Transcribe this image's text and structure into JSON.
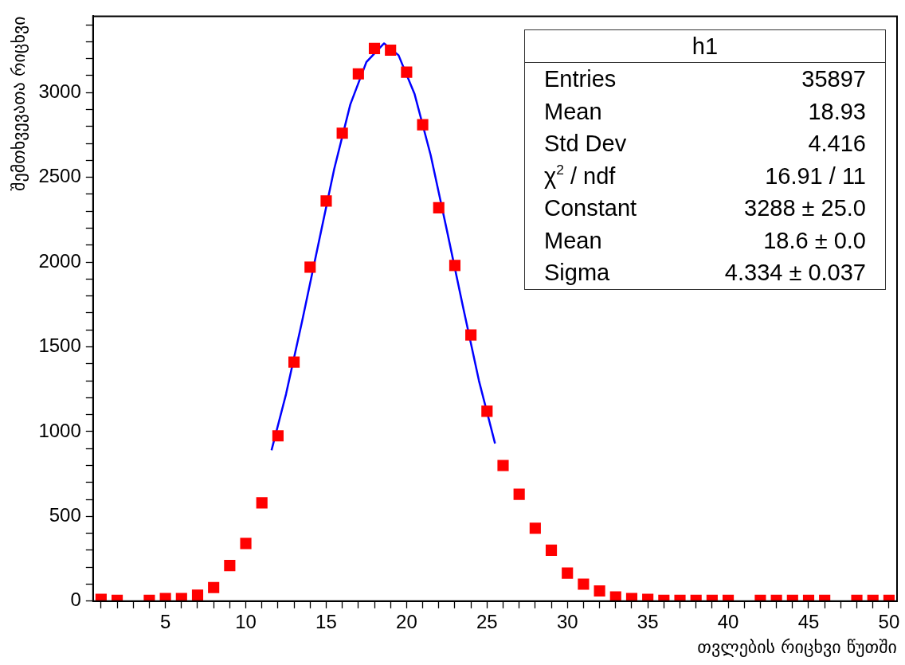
{
  "chart_data": {
    "type": "scatter",
    "xlabel": "თვლების რიცხვი წუთში",
    "ylabel": "შემთხვევათა რიცხვი",
    "x": [
      1,
      2,
      3,
      4,
      5,
      6,
      7,
      8,
      9,
      10,
      11,
      12,
      13,
      14,
      15,
      16,
      17,
      18,
      19,
      20,
      21,
      22,
      23,
      24,
      25,
      26,
      27,
      28,
      29,
      30,
      31,
      32,
      33,
      34,
      35,
      36,
      37,
      38,
      39,
      40,
      41,
      42,
      43,
      44,
      45,
      46,
      47,
      48,
      49,
      50
    ],
    "series": [
      {
        "type": "scatter",
        "color": "#ff0000",
        "marker": "square",
        "values": [
          10,
          5,
          null,
          5,
          15,
          15,
          35,
          80,
          210,
          340,
          580,
          975,
          1410,
          1970,
          2360,
          2760,
          3110,
          3260,
          3250,
          3120,
          2810,
          2320,
          1980,
          1570,
          1120,
          800,
          630,
          430,
          300,
          165,
          100,
          60,
          25,
          15,
          10,
          5,
          5,
          5,
          5,
          5,
          null,
          5,
          5,
          5,
          5,
          5,
          null,
          5,
          5,
          5
        ]
      },
      {
        "type": "line",
        "color": "#0000ff",
        "marker": "none",
        "line_style": "solid",
        "x": [
          11.6,
          12.5,
          13.5,
          14.5,
          15.5,
          16.5,
          17.5,
          18.6,
          19.5,
          20.5,
          21.5,
          22.5,
          23.5,
          24.5,
          25.5
        ],
        "values": [
          890,
          1220,
          1650,
          2100,
          2550,
          2930,
          3180,
          3290,
          3220,
          2990,
          2630,
          2190,
          1740,
          1300,
          930
        ]
      }
    ],
    "xlim": [
      0.5,
      50.5
    ],
    "xticks": [
      {
        "value": 1,
        "label": null
      },
      {
        "value": 2,
        "label": null
      },
      {
        "value": 3,
        "label": null
      },
      {
        "value": 4,
        "label": null
      },
      5,
      {
        "value": 6,
        "label": null
      },
      {
        "value": 7,
        "label": null
      },
      {
        "value": 8,
        "label": null
      },
      {
        "value": 9,
        "label": null
      },
      10,
      {
        "value": 11,
        "label": null
      },
      {
        "value": 12,
        "label": null
      },
      {
        "value": 13,
        "label": null
      },
      {
        "value": 14,
        "label": null
      },
      15,
      {
        "value": 16,
        "label": null
      },
      {
        "value": 17,
        "label": null
      },
      {
        "value": 18,
        "label": null
      },
      {
        "value": 19,
        "label": null
      },
      20,
      {
        "value": 21,
        "label": null
      },
      {
        "value": 22,
        "label": null
      },
      {
        "value": 23,
        "label": null
      },
      {
        "value": 24,
        "label": null
      },
      25,
      {
        "value": 26,
        "label": null
      },
      {
        "value": 27,
        "label": null
      },
      {
        "value": 28,
        "label": null
      },
      {
        "value": 29,
        "label": null
      },
      30,
      {
        "value": 31,
        "label": null
      },
      {
        "value": 32,
        "label": null
      },
      {
        "value": 33,
        "label": null
      },
      {
        "value": 34,
        "label": null
      },
      35,
      {
        "value": 36,
        "label": null
      },
      {
        "value": 37,
        "label": null
      },
      {
        "value": 38,
        "label": null
      },
      {
        "value": 39,
        "label": null
      },
      40,
      {
        "value": 41,
        "label": null
      },
      {
        "value": 42,
        "label": null
      },
      {
        "value": 43,
        "label": null
      },
      {
        "value": 44,
        "label": null
      },
      45,
      {
        "value": 46,
        "label": null
      },
      {
        "value": 47,
        "label": null
      },
      {
        "value": 48,
        "label": null
      },
      {
        "value": 49,
        "label": null
      },
      50
    ],
    "ylim": [
      0,
      3450
    ],
    "yticks": [
      0,
      {
        "value": 100,
        "label": null
      },
      {
        "value": 200,
        "label": null
      },
      {
        "value": 300,
        "label": null
      },
      {
        "value": 400,
        "label": null
      },
      500,
      {
        "value": 600,
        "label": null
      },
      {
        "value": 700,
        "label": null
      },
      {
        "value": 800,
        "label": null
      },
      {
        "value": 900,
        "label": null
      },
      1000,
      {
        "value": 1100,
        "label": null
      },
      {
        "value": 1200,
        "label": null
      },
      {
        "value": 1300,
        "label": null
      },
      {
        "value": 1400,
        "label": null
      },
      1500,
      {
        "value": 1600,
        "label": null
      },
      {
        "value": 1700,
        "label": null
      },
      {
        "value": 1800,
        "label": null
      },
      {
        "value": 1900,
        "label": null
      },
      2000,
      {
        "value": 2100,
        "label": null
      },
      {
        "value": 2200,
        "label": null
      },
      {
        "value": 2300,
        "label": null
      },
      {
        "value": 2400,
        "label": null
      },
      2500,
      {
        "value": 2600,
        "label": null
      },
      {
        "value": 2700,
        "label": null
      },
      {
        "value": 2800,
        "label": null
      },
      {
        "value": 2900,
        "label": null
      },
      3000,
      {
        "value": 3100,
        "label": null
      },
      {
        "value": 3200,
        "label": null
      },
      {
        "value": 3300,
        "label": null
      },
      {
        "value": 3400,
        "label": null
      }
    ],
    "grid": false,
    "legend": false,
    "annotations": [
      "h1",
      "Entries",
      "35897",
      "Mean",
      "18.93",
      "Std Dev",
      "4.416",
      "χ$^{2}$ / ndf",
      "16.91 / 11",
      "Constant",
      "3288 ± 25.0",
      "Mean",
      "18.6 ± 0.0",
      "Sigma",
      "4.334 ± 0.037"
    ]
  }
}
